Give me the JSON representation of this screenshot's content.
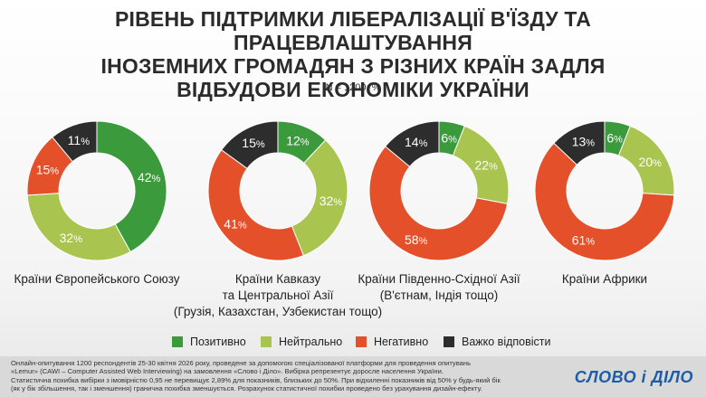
{
  "title": {
    "line1": "РІВЕНЬ ПІДТРИМКИ ЛІБЕРАЛІЗАЦІЇ В'ЇЗДУ ТА ПРАЦЕВЛАШТУВАННЯ",
    "line2": "ІНОЗЕМНИХ ГРОМАДЯН З РІЗНИХ КРАЇН ЗАДЛЯ",
    "line3": "ВІДБУДОВИ ЕКОНОМІКИ УКРАЇНИ"
  },
  "subtitle": "N = 1200, %",
  "colors": {
    "positive": "#3a9a3c",
    "neutral": "#a9c44f",
    "negative": "#e4502a",
    "hard": "#2d2d2d"
  },
  "chart_data": {
    "type": "pie",
    "donut": true,
    "legend_placement": "bottom",
    "legend": [
      "Позитивно",
      "Нейтрально",
      "Негативно",
      "Важко відповісти"
    ],
    "charts": [
      {
        "label_lines": [
          "Країни Європейського Союзу"
        ],
        "values": [
          42,
          32,
          15,
          11
        ]
      },
      {
        "label_lines": [
          "Країни Кавказу",
          "та Центральної Азії",
          "(Грузія, Казахстан, Узбекистан тощо)"
        ],
        "values": [
          12,
          32,
          41,
          15
        ]
      },
      {
        "label_lines": [
          "Країни Південно-Східної Азії",
          "(В'єтнам, Індія тощо)"
        ],
        "values": [
          6,
          22,
          58,
          14
        ]
      },
      {
        "label_lines": [
          "Країни Африки"
        ],
        "values": [
          6,
          20,
          61,
          13
        ]
      }
    ]
  },
  "footnote": [
    "Онлайн-опитування 1200 респондентів 25-30 квітня 2026 року, проведене за допомогою спеціалізованої платформи для проведення опитувань",
    "«Lemur» (CAWI – Computer Assisted Web Interviewing) на замовлення «Слово і Діло». Вибірка репрезентує доросле населення України.",
    "Статистична похибка вибірки з імовірністю 0,95 не перевищує 2,89% для показників, близьких до 50%. При відхиленні показників від 50% у будь-який бік",
    "(як у бік збільшення, так і зменшення) гранична похибка зменшується. Розрахунок статистичної похибки проведено без урахування дизайн-ефекту."
  ],
  "logo": "СЛОВО і ДІЛО"
}
